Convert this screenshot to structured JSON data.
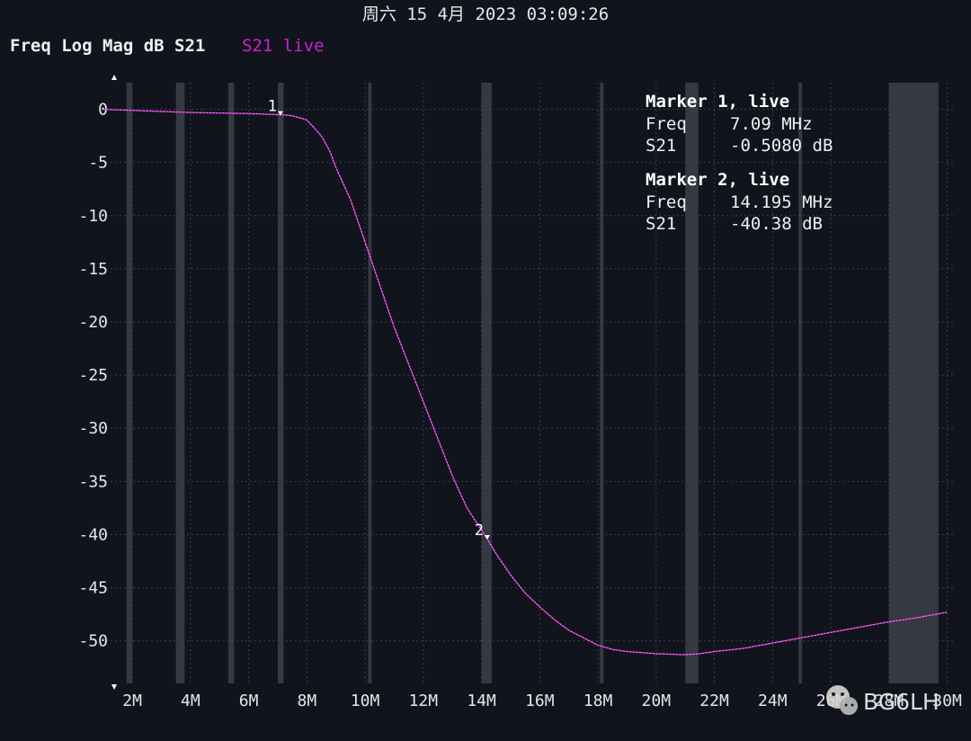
{
  "header": {
    "timestamp": "周六 15 4月 2023 03:09:26",
    "format_label": "Freq Log Mag dB S21",
    "trace_label": "S21 live"
  },
  "colors": {
    "background": "#11141c",
    "trace": "#d020d0",
    "grid": "#3a3f4a",
    "band": "#3c4048"
  },
  "markers": [
    {
      "number": "1",
      "title": "Marker 1, live",
      "freq_label": "Freq",
      "freq_value": "7.09 MHz",
      "param_label": "S21",
      "param_value": "-0.5080 dB",
      "freq_mhz": 7.09,
      "db": -0.508
    },
    {
      "number": "2",
      "title": "Marker 2, live",
      "freq_label": "Freq",
      "freq_value": "14.195 MHz",
      "param_label": "S21",
      "param_value": "-40.38 dB",
      "freq_mhz": 14.195,
      "db": -40.38
    }
  ],
  "watermark": {
    "text": "BG6LH",
    "icon": "wechat-icon"
  },
  "chart_data": {
    "type": "line",
    "xlabel": "",
    "ylabel": "",
    "x_unit": "MHz",
    "xlim": [
      1.1,
      30.2
    ],
    "ylim": [
      -54,
      2.5
    ],
    "x_ticks": [
      2,
      4,
      6,
      8,
      10,
      12,
      14,
      16,
      18,
      20,
      22,
      24,
      26,
      28,
      30
    ],
    "x_tick_labels": [
      "2M",
      "4M",
      "6M",
      "8M",
      "10M",
      "12M",
      "14M",
      "16M",
      "18M",
      "20M",
      "22M",
      "24M",
      "26M",
      "28M",
      "30M"
    ],
    "y_ticks": [
      0,
      -5,
      -10,
      -15,
      -20,
      -25,
      -30,
      -35,
      -40,
      -45,
      -50
    ],
    "y_tick_labels": [
      "0",
      "-5",
      "-10",
      "-15",
      "-20",
      "-25",
      "-30",
      "-35",
      "-40",
      "-45",
      "-50"
    ],
    "grid": true,
    "highlighted_bands_mhz": [
      [
        1.8,
        2.0
      ],
      [
        3.5,
        3.8
      ],
      [
        5.3,
        5.5
      ],
      [
        7.0,
        7.2
      ],
      [
        10.1,
        10.15
      ],
      [
        14.0,
        14.35
      ],
      [
        18.068,
        18.168
      ],
      [
        21.0,
        21.45
      ],
      [
        24.89,
        24.99
      ],
      [
        28.0,
        29.7
      ]
    ],
    "series": [
      {
        "name": "S21",
        "x": [
          1.0,
          2.0,
          3.0,
          4.0,
          5.0,
          6.0,
          7.09,
          7.5,
          8.0,
          8.5,
          8.8,
          9.0,
          9.5,
          10.0,
          10.5,
          11.0,
          11.5,
          12.0,
          12.5,
          13.0,
          13.5,
          14.195,
          14.5,
          15.0,
          15.5,
          16.0,
          16.5,
          17.0,
          17.5,
          18.0,
          18.5,
          19.0,
          19.5,
          20.0,
          20.5,
          21.0,
          21.5,
          22.0,
          23.0,
          24.0,
          25.0,
          26.0,
          27.0,
          28.0,
          29.0,
          30.0
        ],
        "y": [
          0.0,
          -0.1,
          -0.2,
          -0.3,
          -0.35,
          -0.4,
          -0.508,
          -0.6,
          -1.0,
          -2.5,
          -4.0,
          -5.5,
          -8.5,
          -12.5,
          -16.5,
          -20.5,
          -24.0,
          -27.5,
          -31.0,
          -34.5,
          -37.5,
          -40.38,
          -41.8,
          -43.8,
          -45.5,
          -46.8,
          -48.0,
          -49.0,
          -49.7,
          -50.4,
          -50.8,
          -51.0,
          -51.1,
          -51.2,
          -51.25,
          -51.3,
          -51.2,
          -51.0,
          -50.7,
          -50.2,
          -49.7,
          -49.2,
          -48.7,
          -48.2,
          -47.8,
          -47.3
        ]
      }
    ]
  }
}
